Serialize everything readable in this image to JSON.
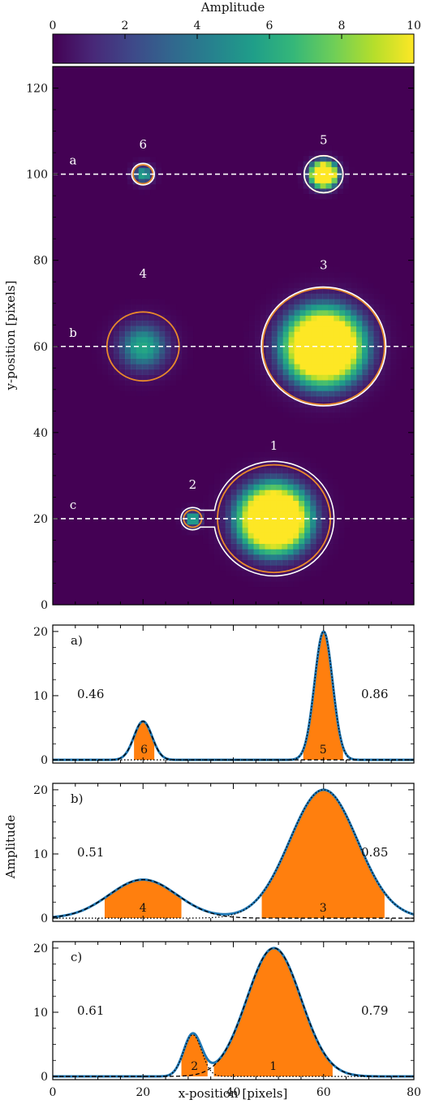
{
  "colorbar": {
    "label": "Amplitude",
    "ticks": [
      0,
      2,
      4,
      6,
      8,
      10
    ],
    "range": [
      0,
      10
    ],
    "colormap": [
      "#440154",
      "#482878",
      "#3e4989",
      "#31688e",
      "#26828e",
      "#1f9e89",
      "#35b779",
      "#6ece58",
      "#b5de2b",
      "#fde725"
    ]
  },
  "image_panel": {
    "ylabel": "y-position [pixels]",
    "xlim": [
      0,
      80
    ],
    "ylim": [
      0,
      125
    ],
    "yticks": [
      0,
      20,
      40,
      60,
      80,
      100,
      120
    ],
    "xticks": [
      0,
      20,
      40,
      60,
      80
    ],
    "grid": false,
    "sources": [
      {
        "id": "1",
        "x": 49,
        "y": 20,
        "sigma": 5.2,
        "amp": 20
      },
      {
        "id": "2",
        "x": 31,
        "y": 20,
        "sigma": 1.4,
        "amp": 6.5
      },
      {
        "id": "3",
        "x": 60,
        "y": 60,
        "sigma": 5.8,
        "amp": 20
      },
      {
        "id": "4",
        "x": 20,
        "y": 60,
        "sigma": 4.2,
        "amp": 6
      },
      {
        "id": "5",
        "x": 60,
        "y": 100,
        "sigma": 2.0,
        "amp": 20
      },
      {
        "id": "6",
        "x": 20,
        "y": 100,
        "sigma": 1.6,
        "amp": 6
      }
    ],
    "source_labels": [
      {
        "text": "1",
        "x": 49,
        "y": 36
      },
      {
        "text": "2",
        "x": 31,
        "y": 27
      },
      {
        "text": "3",
        "x": 60,
        "y": 78
      },
      {
        "text": "4",
        "x": 20,
        "y": 76
      },
      {
        "text": "5",
        "x": 60,
        "y": 107
      },
      {
        "text": "6",
        "x": 20,
        "y": 106
      }
    ],
    "cut_lines": [
      {
        "label": "a",
        "y": 100
      },
      {
        "label": "b",
        "y": 60
      },
      {
        "label": "c",
        "y": 20
      }
    ],
    "white_contours": [
      {
        "type": "circle",
        "cx": 20,
        "cy": 100,
        "r": 2.5
      },
      {
        "type": "circle",
        "cx": 60,
        "cy": 100,
        "r": 4.3
      },
      {
        "type": "circle",
        "cx": 60,
        "cy": 60,
        "r": 13.8
      },
      {
        "type": "merged",
        "c1": [
          49,
          20
        ],
        "r1": 13.3,
        "c2": [
          31,
          20
        ],
        "r2": 2.6
      }
    ],
    "orange_contours": [
      {
        "cx": 20,
        "cy": 100,
        "r": 2.2
      },
      {
        "cx": 60,
        "cy": 100,
        "r": 4.3
      },
      {
        "cx": 20,
        "cy": 60,
        "r": 8.0
      },
      {
        "cx": 60,
        "cy": 60,
        "r": 13.5
      },
      {
        "cx": 49,
        "cy": 20,
        "r": 12.5
      },
      {
        "cx": 31,
        "cy": 20,
        "r": 2.0
      }
    ]
  },
  "profiles": {
    "ylabel": "Amplitude",
    "xlabel": "x-position [pixels]",
    "xlim": [
      0,
      80
    ],
    "ylim": [
      -0.5,
      21
    ],
    "yticks": [
      0,
      10,
      20
    ],
    "xticks": [
      0,
      20,
      40,
      60,
      80
    ],
    "panels": [
      {
        "tag": "a)",
        "left_value": "0.46",
        "right_value": "0.86",
        "components": [
          {
            "mu": 20,
            "sigma": 2.0,
            "amp": 6
          },
          {
            "mu": 60,
            "sigma": 2.0,
            "amp": 20
          }
        ],
        "fills": [
          {
            "label": "6",
            "x0": 18,
            "x1": 22.5,
            "comp": 0
          },
          {
            "label": "5",
            "x0": 55.5,
            "x1": 64.3,
            "comp": 1
          }
        ],
        "dashed_comps": [
          0,
          1
        ]
      },
      {
        "tag": "b)",
        "left_value": "0.51",
        "right_value": "0.85",
        "components": [
          {
            "mu": 20,
            "sigma": 7.5,
            "amp": 6
          },
          {
            "mu": 60,
            "sigma": 7.5,
            "amp": 20
          }
        ],
        "fills": [
          {
            "label": "4",
            "x0": 11.5,
            "x1": 28.5,
            "comp": 0
          },
          {
            "label": "3",
            "x0": 46.3,
            "x1": 73.5,
            "comp": 1
          }
        ],
        "dashed_comps": [
          0,
          1
        ]
      },
      {
        "tag": "c)",
        "left_value": "0.61",
        "right_value": "0.79",
        "components": [
          {
            "mu": 49,
            "sigma": 6.0,
            "amp": 20
          },
          {
            "mu": 31,
            "sigma": 2.0,
            "amp": 6.5
          }
        ],
        "fills": [
          {
            "label": "2",
            "x0": 28.5,
            "x1": 34.3,
            "comp": -1
          },
          {
            "label": "1",
            "x0": 35.7,
            "x1": 62,
            "comp": -1
          }
        ],
        "dashed_comps": [
          0,
          1
        ]
      }
    ]
  },
  "colors": {
    "fill": "#ff7f0e",
    "line": "#1f77b4",
    "cut": "#ffffff",
    "contour_white": "#ffffff",
    "contour_orange": "#e8892b"
  }
}
